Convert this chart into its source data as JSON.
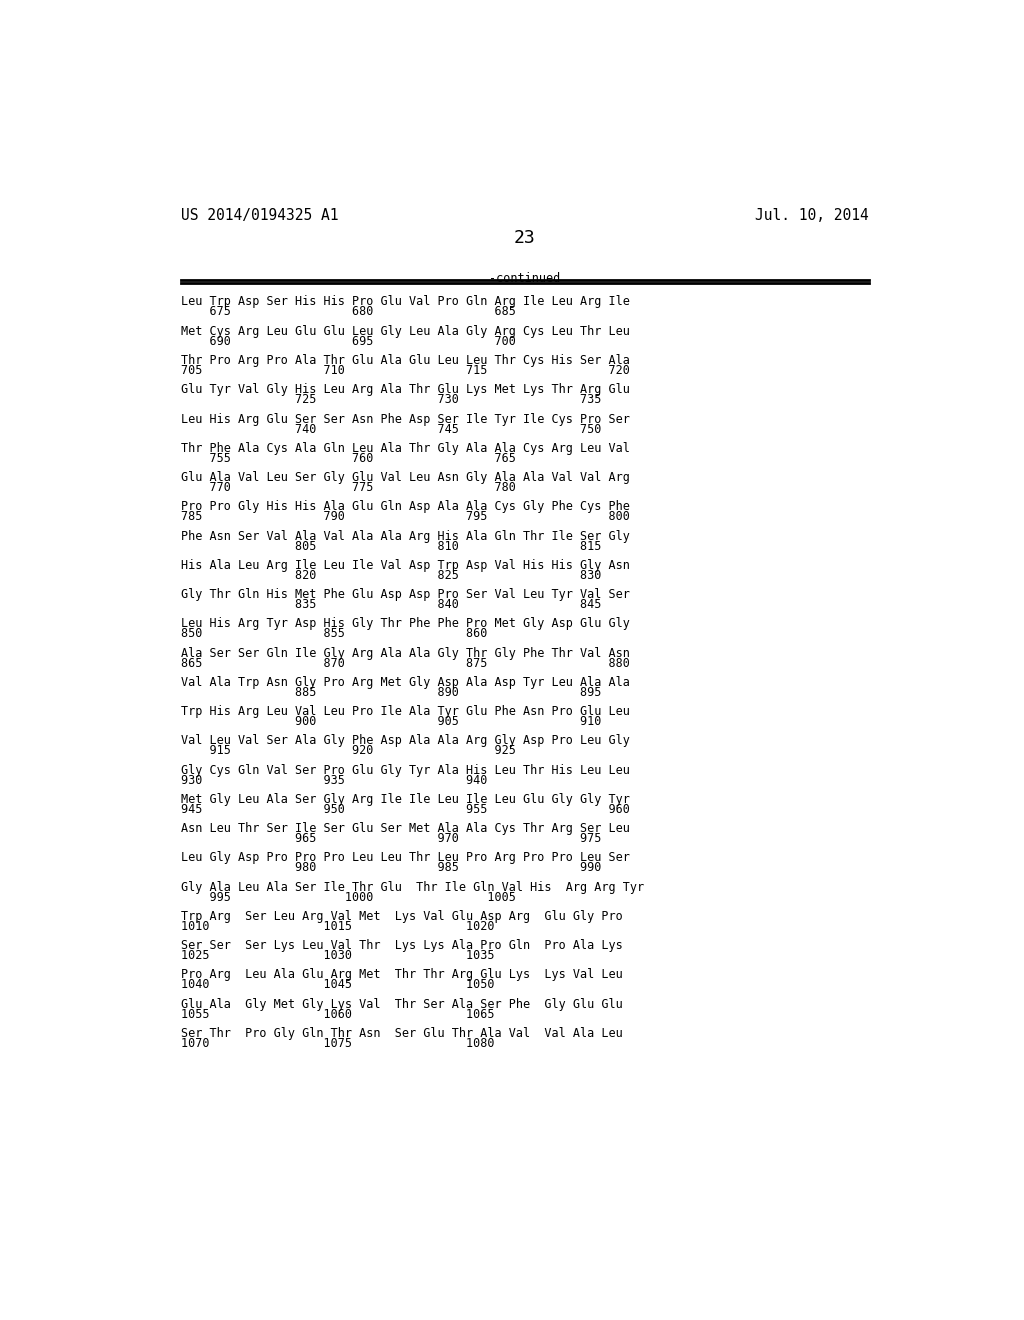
{
  "header_left": "US 2014/0194325 A1",
  "header_right": "Jul. 10, 2014",
  "page_number": "23",
  "continued_label": "-continued",
  "background_color": "#ffffff",
  "text_color": "#000000",
  "font_size": 8.5,
  "header_font_size": 10.5,
  "page_num_font_size": 13,
  "sequence_blocks": [
    {
      "aa": "Leu Trp Asp Ser His His Pro Glu Val Pro Gln Arg Ile Leu Arg Ile",
      "num": "    675                 680                 685"
    },
    {
      "aa": "Met Cys Arg Leu Glu Glu Leu Gly Leu Ala Gly Arg Cys Leu Thr Leu",
      "num": "    690                 695                 700"
    },
    {
      "aa": "Thr Pro Arg Pro Ala Thr Glu Ala Glu Leu Leu Thr Cys His Ser Ala",
      "num": "705                 710                 715                 720"
    },
    {
      "aa": "Glu Tyr Val Gly His Leu Arg Ala Thr Glu Lys Met Lys Thr Arg Glu",
      "num": "                725                 730                 735"
    },
    {
      "aa": "Leu His Arg Glu Ser Ser Asn Phe Asp Ser Ile Tyr Ile Cys Pro Ser",
      "num": "                740                 745                 750"
    },
    {
      "aa": "Thr Phe Ala Cys Ala Gln Leu Ala Thr Gly Ala Ala Cys Arg Leu Val",
      "num": "    755                 760                 765"
    },
    {
      "aa": "Glu Ala Val Leu Ser Gly Glu Val Leu Asn Gly Ala Ala Val Val Arg",
      "num": "    770                 775                 780"
    },
    {
      "aa": "Pro Pro Gly His His Ala Glu Gln Asp Ala Ala Cys Gly Phe Cys Phe",
      "num": "785                 790                 795                 800"
    },
    {
      "aa": "Phe Asn Ser Val Ala Val Ala Ala Arg His Ala Gln Thr Ile Ser Gly",
      "num": "                805                 810                 815"
    },
    {
      "aa": "His Ala Leu Arg Ile Leu Ile Val Asp Trp Asp Val His His Gly Asn",
      "num": "                820                 825                 830"
    },
    {
      "aa": "Gly Thr Gln His Met Phe Glu Asp Asp Pro Ser Val Leu Tyr Val Ser",
      "num": "                835                 840                 845"
    },
    {
      "aa": "Leu His Arg Tyr Asp His Gly Thr Phe Phe Pro Met Gly Asp Glu Gly",
      "num": "850                 855                 860"
    },
    {
      "aa": "Ala Ser Ser Gln Ile Gly Arg Ala Ala Gly Thr Gly Phe Thr Val Asn",
      "num": "865                 870                 875                 880"
    },
    {
      "aa": "Val Ala Trp Asn Gly Pro Arg Met Gly Asp Ala Asp Tyr Leu Ala Ala",
      "num": "                885                 890                 895"
    },
    {
      "aa": "Trp His Arg Leu Val Leu Pro Ile Ala Tyr Glu Phe Asn Pro Glu Leu",
      "num": "                900                 905                 910"
    },
    {
      "aa": "Val Leu Val Ser Ala Gly Phe Asp Ala Ala Arg Gly Asp Pro Leu Gly",
      "num": "    915                 920                 925"
    },
    {
      "aa": "Gly Cys Gln Val Ser Pro Glu Gly Tyr Ala His Leu Thr His Leu Leu",
      "num": "930                 935                 940"
    },
    {
      "aa": "Met Gly Leu Ala Ser Gly Arg Ile Ile Leu Ile Leu Glu Gly Gly Tyr",
      "num": "945                 950                 955                 960"
    },
    {
      "aa": "Asn Leu Thr Ser Ile Ser Glu Ser Met Ala Ala Cys Thr Arg Ser Leu",
      "num": "                965                 970                 975"
    },
    {
      "aa": "Leu Gly Asp Pro Pro Pro Leu Leu Thr Leu Pro Arg Pro Pro Leu Ser",
      "num": "                980                 985                 990"
    },
    {
      "aa": "Gly Ala Leu Ala Ser Ile Thr Glu  Thr Ile Gln Val His  Arg Arg Tyr",
      "num": "    995                1000                1005"
    },
    {
      "aa": "Trp Arg  Ser Leu Arg Val Met  Lys Val Glu Asp Arg  Glu Gly Pro",
      "num": "1010                1015                1020"
    },
    {
      "aa": "Ser Ser  Ser Lys Leu Val Thr  Lys Lys Ala Pro Gln  Pro Ala Lys",
      "num": "1025                1030                1035"
    },
    {
      "aa": "Pro Arg  Leu Ala Glu Arg Met  Thr Thr Arg Glu Lys  Lys Val Leu",
      "num": "1040                1045                1050"
    },
    {
      "aa": "Glu Ala  Gly Met Gly Lys Val  Thr Ser Ala Ser Phe  Gly Glu Glu",
      "num": "1055                1060                1065"
    },
    {
      "aa": "Ser Thr  Pro Gly Gln Thr Asn  Ser Glu Thr Ala Val  Val Ala Leu",
      "num": "1070                1075                1080"
    }
  ]
}
